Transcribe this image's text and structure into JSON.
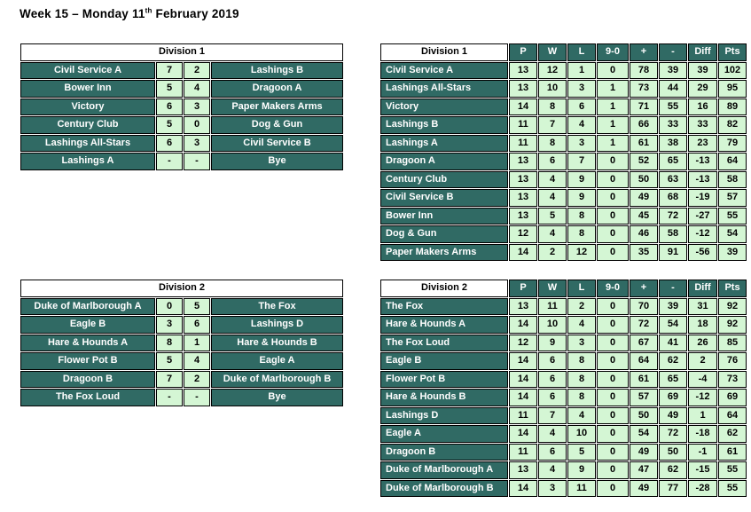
{
  "page_title": {
    "prefix": "Week 15 – Monday 11",
    "superscript": "th",
    "suffix": " February 2019"
  },
  "colors": {
    "team_cell_teal": "#306A64",
    "value_cell_green": "#D4F6D4",
    "border_black": "#000000",
    "header_white": "#FFFFFF",
    "team_text_white": "#FFFFFF",
    "value_text_black": "#000000"
  },
  "results": [
    {
      "division": "Division 1",
      "matches": [
        {
          "home": "Civil Service A",
          "home_score": "7",
          "away_score": "2",
          "away": "Lashings B"
        },
        {
          "home": "Bower Inn",
          "home_score": "5",
          "away_score": "4",
          "away": "Dragoon A"
        },
        {
          "home": "Victory",
          "home_score": "6",
          "away_score": "3",
          "away": "Paper Makers Arms"
        },
        {
          "home": "Century Club",
          "home_score": "5",
          "away_score": "0",
          "away": "Dog & Gun"
        },
        {
          "home": "Lashings All-Stars",
          "home_score": "6",
          "away_score": "3",
          "away": "Civil Service B"
        },
        {
          "home": "Lashings A",
          "home_score": "-",
          "away_score": "-",
          "away": "Bye"
        }
      ]
    },
    {
      "division": "Division 2",
      "matches": [
        {
          "home": "Duke of Marlborough A",
          "home_score": "0",
          "away_score": "5",
          "away": "The Fox"
        },
        {
          "home": "Eagle B",
          "home_score": "3",
          "away_score": "6",
          "away": "Lashings D"
        },
        {
          "home": "Hare & Hounds A",
          "home_score": "8",
          "away_score": "1",
          "away": "Hare & Hounds B"
        },
        {
          "home": "Flower Pot B",
          "home_score": "5",
          "away_score": "4",
          "away": "Eagle A"
        },
        {
          "home": "Dragoon B",
          "home_score": "7",
          "away_score": "2",
          "away": "Duke of Marlborough B"
        },
        {
          "home": "The Fox Loud",
          "home_score": "-",
          "away_score": "-",
          "away": "Bye"
        }
      ]
    }
  ],
  "standings": [
    {
      "division": "Division 1",
      "columns": [
        "P",
        "W",
        "L",
        "9-0",
        "+",
        "-",
        "Diff",
        "Pts"
      ],
      "rows": [
        {
          "team": "Civil Service A",
          "values": [
            "13",
            "12",
            "1",
            "0",
            "78",
            "39",
            "39",
            "102"
          ]
        },
        {
          "team": "Lashings All-Stars",
          "values": [
            "13",
            "10",
            "3",
            "1",
            "73",
            "44",
            "29",
            "95"
          ]
        },
        {
          "team": "Victory",
          "values": [
            "14",
            "8",
            "6",
            "1",
            "71",
            "55",
            "16",
            "89"
          ]
        },
        {
          "team": "Lashings B",
          "values": [
            "11",
            "7",
            "4",
            "1",
            "66",
            "33",
            "33",
            "82"
          ]
        },
        {
          "team": "Lashings A",
          "values": [
            "11",
            "8",
            "3",
            "1",
            "61",
            "38",
            "23",
            "79"
          ]
        },
        {
          "team": "Dragoon A",
          "values": [
            "13",
            "6",
            "7",
            "0",
            "52",
            "65",
            "-13",
            "64"
          ]
        },
        {
          "team": "Century Club",
          "values": [
            "13",
            "4",
            "9",
            "0",
            "50",
            "63",
            "-13",
            "58"
          ]
        },
        {
          "team": "Civil Service B",
          "values": [
            "13",
            "4",
            "9",
            "0",
            "49",
            "68",
            "-19",
            "57"
          ]
        },
        {
          "team": "Bower Inn",
          "values": [
            "13",
            "5",
            "8",
            "0",
            "45",
            "72",
            "-27",
            "55"
          ]
        },
        {
          "team": "Dog & Gun",
          "values": [
            "12",
            "4",
            "8",
            "0",
            "46",
            "58",
            "-12",
            "54"
          ]
        },
        {
          "team": "Paper Makers Arms",
          "values": [
            "14",
            "2",
            "12",
            "0",
            "35",
            "91",
            "-56",
            "39"
          ]
        }
      ]
    },
    {
      "division": "Division 2",
      "columns": [
        "P",
        "W",
        "L",
        "9-0",
        "+",
        "-",
        "Diff",
        "Pts"
      ],
      "rows": [
        {
          "team": "The Fox",
          "values": [
            "13",
            "11",
            "2",
            "0",
            "70",
            "39",
            "31",
            "92"
          ]
        },
        {
          "team": "Hare & Hounds A",
          "values": [
            "14",
            "10",
            "4",
            "0",
            "72",
            "54",
            "18",
            "92"
          ]
        },
        {
          "team": "The Fox Loud",
          "values": [
            "12",
            "9",
            "3",
            "0",
            "67",
            "41",
            "26",
            "85"
          ]
        },
        {
          "team": "Eagle B",
          "values": [
            "14",
            "6",
            "8",
            "0",
            "64",
            "62",
            "2",
            "76"
          ]
        },
        {
          "team": "Flower Pot B",
          "values": [
            "14",
            "6",
            "8",
            "0",
            "61",
            "65",
            "-4",
            "73"
          ]
        },
        {
          "team": "Hare & Hounds B",
          "values": [
            "14",
            "6",
            "8",
            "0",
            "57",
            "69",
            "-12",
            "69"
          ]
        },
        {
          "team": "Lashings D",
          "values": [
            "11",
            "7",
            "4",
            "0",
            "50",
            "49",
            "1",
            "64"
          ]
        },
        {
          "team": "Eagle A",
          "values": [
            "14",
            "4",
            "10",
            "0",
            "54",
            "72",
            "-18",
            "62"
          ]
        },
        {
          "team": "Dragoon B",
          "values": [
            "11",
            "6",
            "5",
            "0",
            "49",
            "50",
            "-1",
            "61"
          ]
        },
        {
          "team": "Duke of Marlborough A",
          "values": [
            "13",
            "4",
            "9",
            "0",
            "47",
            "62",
            "-15",
            "55"
          ]
        },
        {
          "team": "Duke of Marlborough B",
          "values": [
            "14",
            "3",
            "11",
            "0",
            "49",
            "77",
            "-28",
            "55"
          ]
        }
      ]
    }
  ]
}
